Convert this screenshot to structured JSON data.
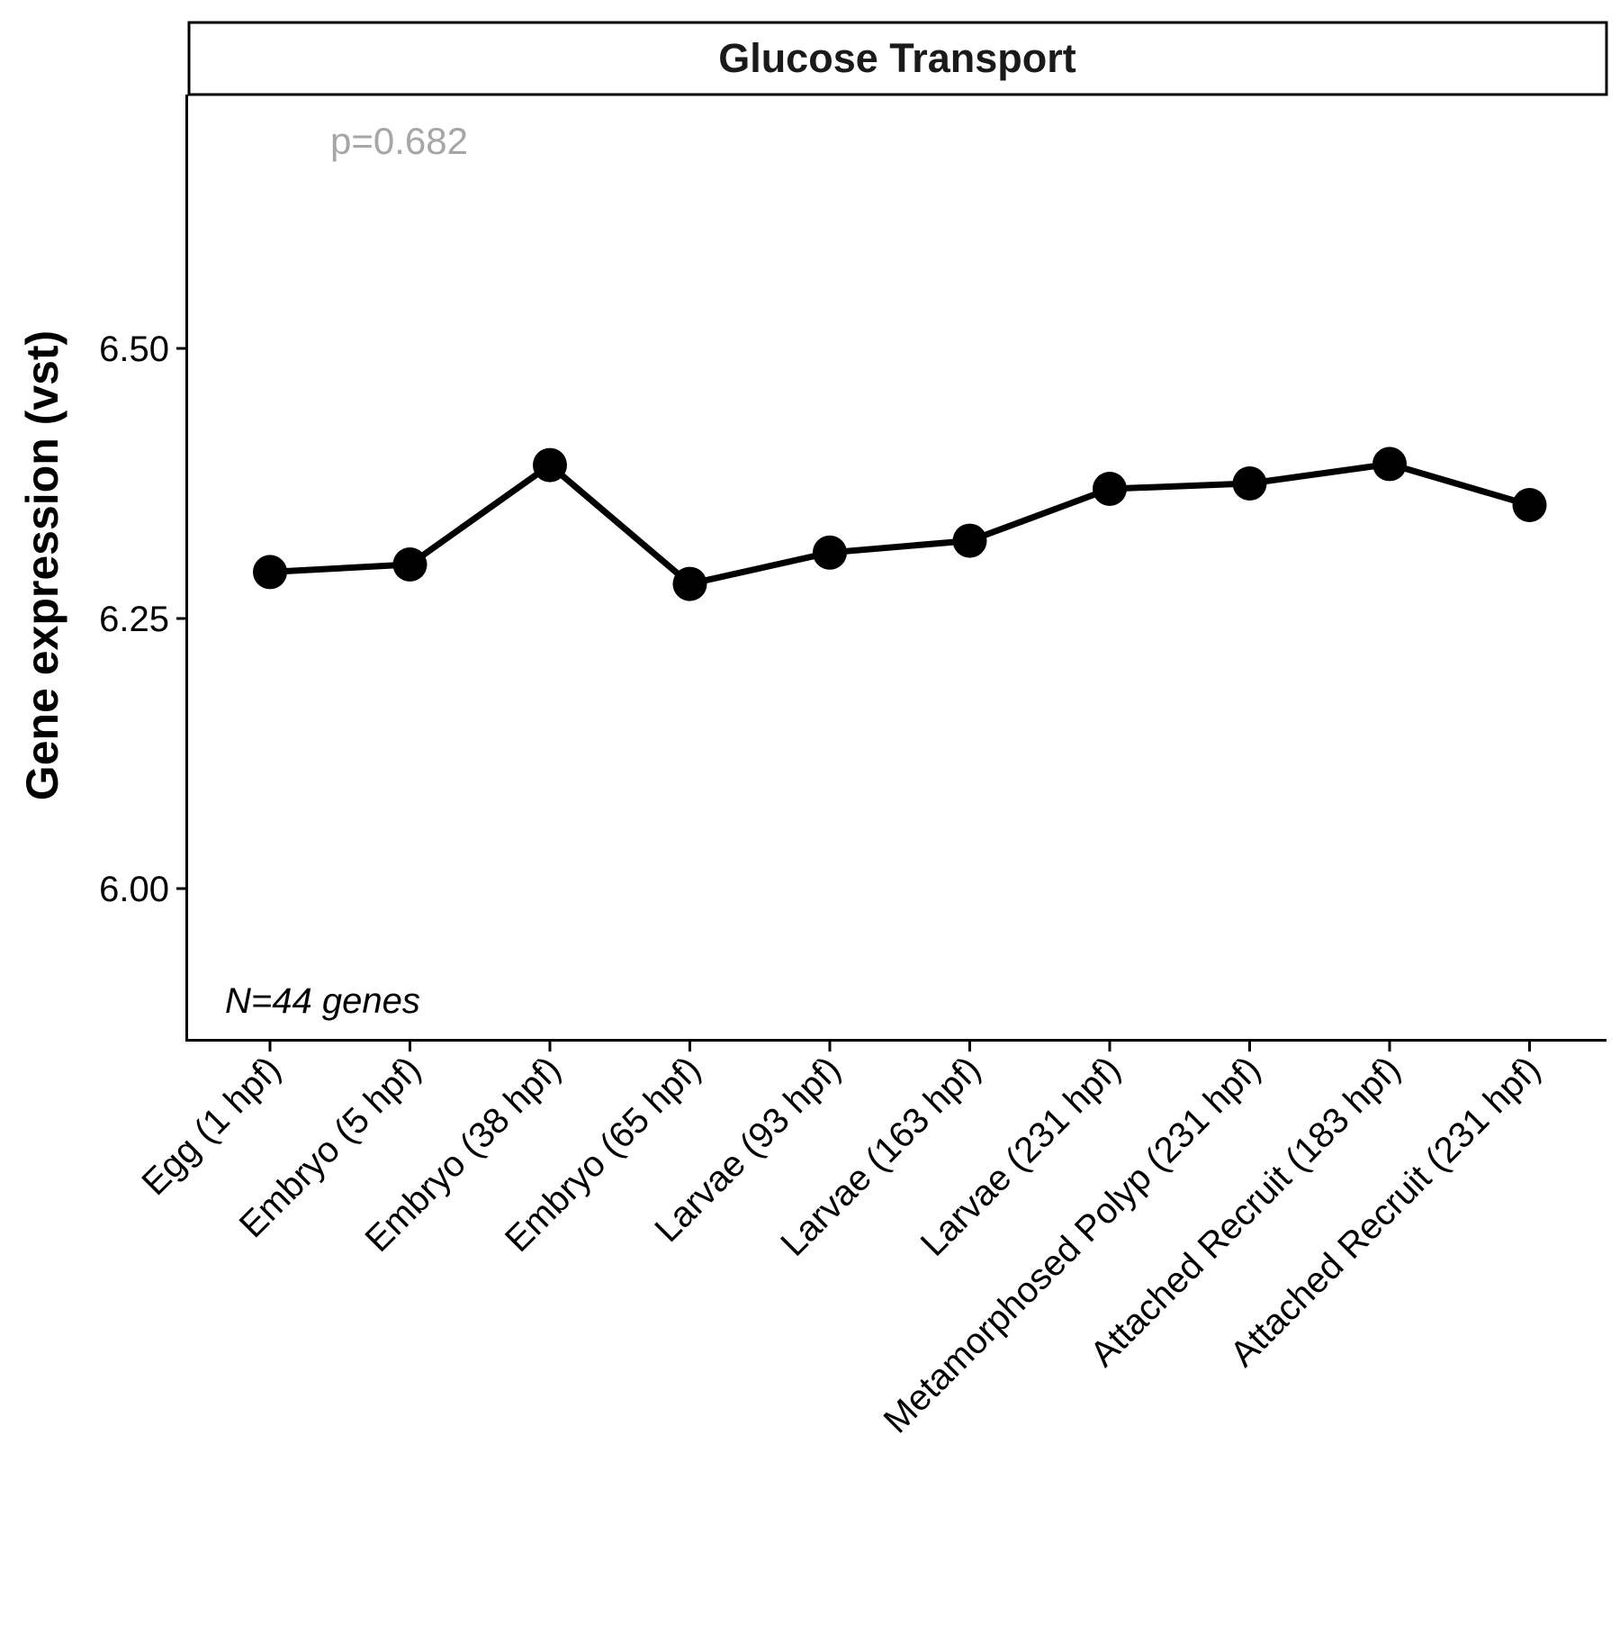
{
  "chart_data": {
    "type": "line",
    "facet_title": "Glucose Transport",
    "ylabel": "Gene expression (vst)",
    "xlabel": "",
    "ylim": [
      5.86,
      6.735
    ],
    "yticks": [
      6.0,
      6.25,
      6.5
    ],
    "ytick_labels": [
      "6.00",
      "6.25",
      "6.50"
    ],
    "grid": false,
    "legend": "none",
    "annotation_p": "p=0.682",
    "annotation_n": "N=44 genes",
    "categories": [
      "Egg (1 hpf)",
      "Embryo (5 hpf)",
      "Embryo (38 hpf)",
      "Embryo (65 hpf)",
      "Larvae (93 hpf)",
      "Larvae (163 hpf)",
      "Larvae (231 hpf)",
      "Metamorphosed Polyp (231 hpf)",
      "Attached Recruit (183 hpf)",
      "Attached Recruit (231 hpf)"
    ],
    "values": [
      6.293,
      6.3,
      6.392,
      6.282,
      6.311,
      6.322,
      6.37,
      6.375,
      6.393,
      6.355
    ],
    "line_color": "#000000",
    "point_color": "#000000",
    "annotation_p_color": "#a6a6a6"
  }
}
